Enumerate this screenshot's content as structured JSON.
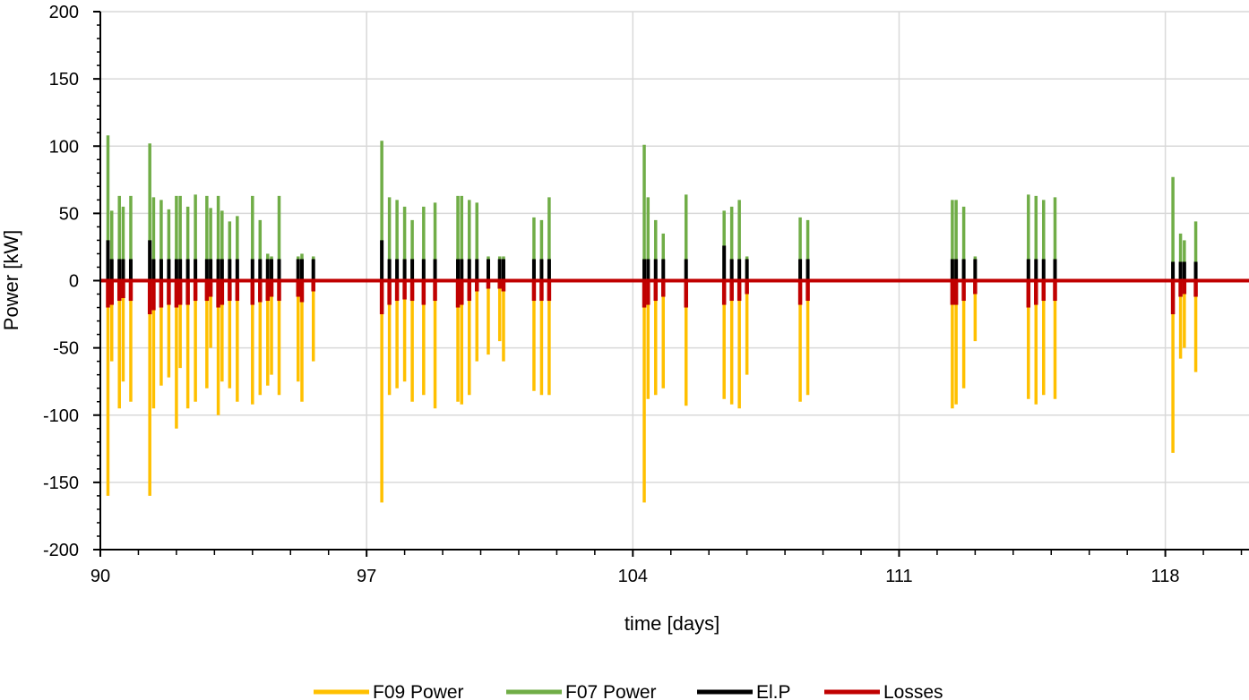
{
  "chart_data": {
    "type": "line",
    "title": "",
    "xlabel": "time [days]",
    "ylabel": "Power [kW]",
    "xlim": [
      90,
      120.2
    ],
    "ylim": [
      -200,
      200
    ],
    "x_ticks": [
      "90",
      "97",
      "104",
      "111",
      "118"
    ],
    "y_ticks": [
      "200",
      "150",
      "100",
      "50",
      "0",
      "-50",
      "-100",
      "-150",
      "-200"
    ],
    "grid": true,
    "legend_position": "bottom",
    "colors": {
      "F09 Power": "#FFC000",
      "F07 Power": "#70AD47",
      "El.P": "#000000",
      "Losses": "#C00000"
    },
    "series": [
      {
        "name": "F09 Power",
        "x": [
          90.2,
          90.3,
          90.5,
          90.6,
          90.8,
          91.3,
          91.4,
          91.6,
          91.8,
          92.0,
          92.1,
          92.3,
          92.5,
          92.8,
          92.9,
          93.1,
          93.2,
          93.4,
          93.6,
          94.0,
          94.2,
          94.4,
          94.5,
          94.7,
          95.2,
          95.3,
          95.6,
          97.4,
          97.6,
          97.8,
          98.0,
          98.2,
          98.5,
          98.8,
          99.4,
          99.5,
          99.7,
          99.9,
          100.2,
          100.5,
          100.6,
          101.4,
          101.6,
          101.8,
          104.3,
          104.4,
          104.6,
          104.8,
          105.4,
          106.4,
          106.6,
          106.8,
          107.0,
          108.4,
          108.6,
          112.4,
          112.5,
          112.7,
          113.0,
          114.4,
          114.6,
          114.8,
          115.1,
          118.2,
          118.4,
          118.5,
          118.8
        ],
        "values": [
          -160,
          -60,
          -95,
          -75,
          -90,
          -160,
          -95,
          -78,
          -72,
          -110,
          -65,
          -95,
          -90,
          -80,
          -50,
          -100,
          -75,
          -80,
          -90,
          -92,
          -85,
          -78,
          -70,
          -85,
          -75,
          -90,
          -60,
          -165,
          -85,
          -80,
          -75,
          -90,
          -85,
          -95,
          -90,
          -92,
          -85,
          -60,
          -55,
          -45,
          -60,
          -82,
          -85,
          -85,
          -165,
          -88,
          -85,
          -80,
          -93,
          -88,
          -92,
          -95,
          -70,
          -90,
          -85,
          -95,
          -92,
          -80,
          -45,
          -88,
          -92,
          -85,
          -88,
          -128,
          -58,
          -50,
          -68
        ]
      },
      {
        "name": "F07 Power",
        "x": [
          90.2,
          90.3,
          90.5,
          90.6,
          90.8,
          91.3,
          91.4,
          91.6,
          91.8,
          92.0,
          92.1,
          92.3,
          92.5,
          92.8,
          92.9,
          93.1,
          93.2,
          93.4,
          93.6,
          94.0,
          94.2,
          94.4,
          94.5,
          94.7,
          95.2,
          95.3,
          95.6,
          97.4,
          97.6,
          97.8,
          98.0,
          98.2,
          98.5,
          98.8,
          99.4,
          99.5,
          99.7,
          99.9,
          100.2,
          100.5,
          100.6,
          101.4,
          101.6,
          101.8,
          104.3,
          104.4,
          104.6,
          104.8,
          105.4,
          106.4,
          106.6,
          106.8,
          107.0,
          108.4,
          108.6,
          112.4,
          112.5,
          112.7,
          113.0,
          114.4,
          114.6,
          114.8,
          115.1,
          118.2,
          118.4,
          118.5,
          118.8
        ],
        "values": [
          108,
          52,
          63,
          55,
          63,
          102,
          62,
          60,
          53,
          63,
          63,
          55,
          64,
          63,
          54,
          63,
          52,
          44,
          48,
          63,
          45,
          20,
          18,
          63,
          18,
          20,
          18,
          104,
          62,
          60,
          55,
          45,
          55,
          58,
          63,
          63,
          60,
          58,
          18,
          18,
          18,
          47,
          45,
          62,
          101,
          62,
          45,
          35,
          64,
          52,
          55,
          60,
          18,
          47,
          45,
          60,
          60,
          55,
          18,
          64,
          63,
          60,
          62,
          77,
          35,
          30,
          44
        ]
      },
      {
        "name": "El.P",
        "x": [
          90.2,
          90.3,
          90.5,
          90.6,
          90.8,
          91.3,
          91.4,
          91.6,
          91.8,
          92.0,
          92.1,
          92.3,
          92.5,
          92.8,
          92.9,
          93.1,
          93.2,
          93.4,
          93.6,
          94.0,
          94.2,
          94.4,
          94.5,
          94.7,
          95.2,
          95.3,
          95.6,
          97.4,
          97.6,
          97.8,
          98.0,
          98.2,
          98.5,
          98.8,
          99.4,
          99.5,
          99.7,
          99.9,
          100.2,
          100.5,
          100.6,
          101.4,
          101.6,
          101.8,
          104.3,
          104.4,
          104.6,
          104.8,
          105.4,
          106.4,
          106.6,
          106.8,
          107.0,
          108.4,
          108.6,
          112.4,
          112.5,
          112.7,
          113.0,
          114.4,
          114.6,
          114.8,
          115.1,
          118.2,
          118.4,
          118.5,
          118.8
        ],
        "values": [
          30,
          16,
          16,
          16,
          16,
          30,
          16,
          16,
          16,
          16,
          16,
          16,
          16,
          16,
          16,
          16,
          16,
          16,
          16,
          16,
          16,
          16,
          16,
          16,
          16,
          16,
          16,
          30,
          16,
          16,
          16,
          16,
          16,
          16,
          16,
          16,
          16,
          16,
          16,
          16,
          16,
          16,
          16,
          16,
          16,
          16,
          16,
          16,
          16,
          26,
          16,
          16,
          16,
          16,
          16,
          16,
          16,
          16,
          16,
          16,
          16,
          16,
          16,
          14,
          14,
          14,
          14
        ]
      },
      {
        "name": "Losses",
        "x": [
          90.2,
          90.3,
          90.5,
          90.6,
          90.8,
          91.3,
          91.4,
          91.6,
          91.8,
          92.0,
          92.1,
          92.3,
          92.5,
          92.8,
          92.9,
          93.1,
          93.2,
          93.4,
          93.6,
          94.0,
          94.2,
          94.4,
          94.5,
          94.7,
          95.2,
          95.3,
          95.6,
          97.4,
          97.6,
          97.8,
          98.0,
          98.2,
          98.5,
          98.8,
          99.4,
          99.5,
          99.7,
          99.9,
          100.2,
          100.5,
          100.6,
          101.4,
          101.6,
          101.8,
          104.3,
          104.4,
          104.6,
          104.8,
          105.4,
          106.4,
          106.6,
          106.8,
          107.0,
          108.4,
          108.6,
          112.4,
          112.5,
          112.7,
          113.0,
          114.4,
          114.6,
          114.8,
          115.1,
          118.2,
          118.4,
          118.5,
          118.8
        ],
        "values": [
          -20,
          -18,
          -15,
          -13,
          -15,
          -25,
          -22,
          -20,
          -18,
          -20,
          -18,
          -18,
          -15,
          -15,
          -12,
          -20,
          -18,
          -15,
          -15,
          -18,
          -16,
          -15,
          -12,
          -15,
          -12,
          -16,
          -8,
          -25,
          -18,
          -15,
          -14,
          -15,
          -18,
          -15,
          -20,
          -18,
          -15,
          -8,
          -6,
          -6,
          -8,
          -15,
          -15,
          -15,
          -20,
          -18,
          -15,
          -12,
          -20,
          -18,
          -15,
          -15,
          -10,
          -18,
          -15,
          -18,
          -18,
          -15,
          -10,
          -20,
          -18,
          -15,
          -15,
          -25,
          -12,
          -10,
          -12
        ]
      }
    ]
  }
}
